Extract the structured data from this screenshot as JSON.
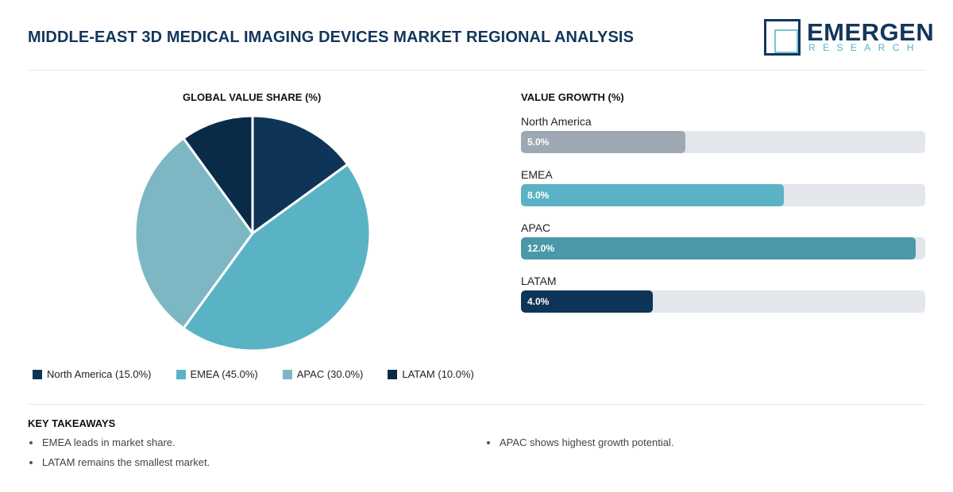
{
  "header": {
    "title": "MIDDLE-EAST 3D MEDICAL IMAGING DEVICES MARKET REGIONAL ANALYSIS",
    "logo_name": "EMERGEN",
    "logo_sub": "RESEARCH",
    "logo_color": "#14365a",
    "logo_accent": "#4fb3c8"
  },
  "chart_data": [
    {
      "type": "pie",
      "title": "GLOBAL VALUE SHARE (%)",
      "categories": [
        "North America",
        "EMEA",
        "APAC",
        "LATAM"
      ],
      "values": [
        15.0,
        45.0,
        30.0,
        10.0
      ],
      "colors": [
        "#0e3558",
        "#5ab3c5",
        "#7eb7c4",
        "#0a2b47"
      ],
      "legend": [
        {
          "label": "North America (15.0%)",
          "color": "#0e3558"
        },
        {
          "label": "EMEA (45.0%)",
          "color": "#5ab3c5"
        },
        {
          "label": "APAC (30.0%)",
          "color": "#7eb7c4"
        },
        {
          "label": "LATAM (10.0%)",
          "color": "#0a2b47"
        }
      ],
      "legend_placement": "bottom"
    },
    {
      "type": "bar",
      "orientation": "horizontal",
      "title": "VALUE GROWTH (%)",
      "categories": [
        "North America",
        "EMEA",
        "APAC",
        "LATAM"
      ],
      "values": [
        5.0,
        8.0,
        12.0,
        4.0
      ],
      "value_labels": [
        "5.0%",
        "8.0%",
        "12.0%",
        "4.0%"
      ],
      "colors": [
        "#9ea8b3",
        "#5ab3c5",
        "#4a98a8",
        "#0e3558"
      ],
      "xlim": [
        0,
        12.3
      ],
      "track_color": "#e3e6ea"
    }
  ],
  "takeaways": {
    "title": "KEY TAKEAWAYS",
    "items": [
      "EMEA leads in market share.",
      "APAC shows highest growth potential.",
      "LATAM remains the smallest market."
    ]
  }
}
